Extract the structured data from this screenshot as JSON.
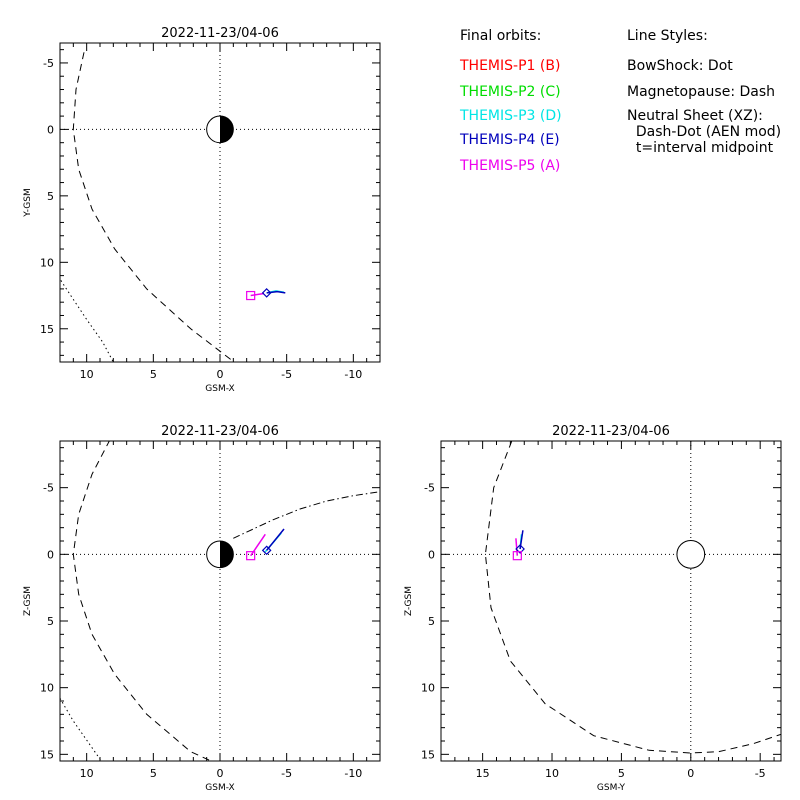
{
  "legend": {
    "orbits_title": "Final orbits:",
    "orbits": [
      {
        "label": "THEMIS-P1 (B)",
        "color": "#ff0000"
      },
      {
        "label": "THEMIS-P2 (C)",
        "color": "#00dd00"
      },
      {
        "label": "THEMIS-P3 (D)",
        "color": "#00e5e5"
      },
      {
        "label": "THEMIS-P4 (E)",
        "color": "#0000bb"
      },
      {
        "label": "THEMIS-P5 (A)",
        "color": "#ee00ee"
      }
    ],
    "styles_title": "Line Styles:",
    "styles": [
      "BowShock: Dot",
      "Magnetopause: Dash",
      "Neutral Sheet (XZ):",
      "  Dash-Dot (AEN mod)",
      "  t=interval midpoint"
    ]
  },
  "chart_data": [
    {
      "id": "xy",
      "type": "line",
      "title": "2022-11-23/04-06",
      "xlabel": "GSM-X",
      "ylabel": "Y-GSM",
      "xlim": [
        12,
        -12
      ],
      "ylim": [
        -6.5,
        17.5
      ],
      "xticks": [
        10,
        5,
        0,
        -5,
        -10
      ],
      "yticks": [
        -5,
        0,
        5,
        10,
        15
      ],
      "earth": {
        "x": 0,
        "y": 0,
        "r": 1
      },
      "series": [
        {
          "style": "dash",
          "points": [
            [
              10.2,
              -5.8
            ],
            [
              10.8,
              -3
            ],
            [
              11.0,
              0
            ],
            [
              10.6,
              3
            ],
            [
              9.6,
              6
            ],
            [
              7.9,
              9
            ],
            [
              5.5,
              12
            ],
            [
              2.2,
              15
            ],
            [
              -1.7,
              18
            ]
          ]
        },
        {
          "style": "dot",
          "points": [
            [
              12.3,
              10.8
            ],
            [
              11.2,
              12.5
            ],
            [
              10.0,
              14.3
            ],
            [
              8.8,
              16.0
            ],
            [
              8.0,
              17.5
            ]
          ]
        },
        {
          "style": "solid",
          "color": "#00e5e5",
          "points": [
            [
              -3.5,
              12.3
            ],
            [
              -4.2,
              12.15
            ],
            [
              -4.8,
              12.25
            ]
          ]
        },
        {
          "style": "solid",
          "color": "#0000bb",
          "points": [
            [
              -3.5,
              12.3
            ],
            [
              -4.3,
              12.2
            ],
            [
              -4.9,
              12.3
            ]
          ]
        },
        {
          "style": "solid",
          "color": "#ee00ee",
          "points": [
            [
              -2.3,
              12.5
            ],
            [
              -3.3,
              12.35
            ]
          ]
        }
      ],
      "markers": [
        {
          "shape": "diamond",
          "color": "#0000bb",
          "x": -3.5,
          "y": 12.3
        },
        {
          "shape": "square",
          "color": "#ee00ee",
          "x": -2.3,
          "y": 12.5
        }
      ]
    },
    {
      "id": "xz",
      "type": "line",
      "title": "2022-11-23/04-06",
      "xlabel": "GSM-X",
      "ylabel": "Z-GSM",
      "xlim": [
        12,
        -12
      ],
      "ylim": [
        -8.5,
        15.5
      ],
      "xticks": [
        10,
        5,
        0,
        -5,
        -10
      ],
      "yticks": [
        -5,
        0,
        5,
        10,
        15
      ],
      "earth": {
        "x": 0,
        "y": 0,
        "r": 1
      },
      "series": [
        {
          "style": "dash",
          "points": [
            [
              0,
              15.8
            ],
            [
              -0.5,
              16.5
            ]
          ]
        },
        {
          "style": "dash",
          "points": [
            [
              0,
              15.8
            ],
            [
              2.2,
              14.8
            ],
            [
              5.5,
              12
            ],
            [
              7.9,
              9
            ],
            [
              9.6,
              6
            ],
            [
              10.6,
              3
            ],
            [
              11.0,
              0
            ],
            [
              10.6,
              -3
            ],
            [
              9.6,
              -6
            ],
            [
              8.3,
              -8.5
            ]
          ]
        },
        {
          "style": "dot",
          "points": [
            [
              12,
              10.8
            ],
            [
              11.0,
              12.5
            ],
            [
              9.6,
              14.5
            ],
            [
              8.9,
              15.5
            ]
          ]
        },
        {
          "style": "dashdot",
          "points": [
            [
              -1,
              -1.2
            ],
            [
              -2.5,
              -1.9
            ],
            [
              -4,
              -2.6
            ],
            [
              -6,
              -3.4
            ],
            [
              -8,
              -4.0
            ],
            [
              -10,
              -4.4
            ],
            [
              -12,
              -4.7
            ]
          ]
        },
        {
          "style": "solid",
          "color": "#ee00ee",
          "points": [
            [
              -2.3,
              0.1
            ],
            [
              -3.4,
              -1.5
            ]
          ]
        },
        {
          "style": "solid",
          "color": "#00e5e5",
          "points": [
            [
              -3.4,
              -0.2
            ],
            [
              -4.6,
              -1.6
            ]
          ]
        },
        {
          "style": "solid",
          "color": "#0000bb",
          "points": [
            [
              -3.5,
              -0.3
            ],
            [
              -4.8,
              -1.9
            ]
          ]
        }
      ],
      "markers": [
        {
          "shape": "diamond",
          "color": "#0000bb",
          "x": -3.5,
          "y": -0.3
        },
        {
          "shape": "square",
          "color": "#ee00ee",
          "x": -2.3,
          "y": 0.1
        }
      ]
    },
    {
      "id": "yz",
      "type": "line",
      "title": "2022-11-23/04-06",
      "xlabel": "GSM-Y",
      "ylabel": "Z-GSM",
      "xlim": [
        18,
        -6.5
      ],
      "ylim": [
        -8.5,
        15.5
      ],
      "xticks": [
        15,
        10,
        5,
        0,
        -5
      ],
      "yticks": [
        -5,
        0,
        5,
        10,
        15
      ],
      "earth": {
        "x": 0,
        "y": 0,
        "r": 1
      },
      "series": [
        {
          "style": "dash",
          "points": [
            [
              12.9,
              -8.5
            ],
            [
              14.2,
              -5
            ],
            [
              14.8,
              0
            ],
            [
              14.4,
              4
            ],
            [
              13,
              8
            ],
            [
              10.5,
              11.2
            ],
            [
              7,
              13.6
            ],
            [
              3,
              14.7
            ],
            [
              0,
              14.9
            ],
            [
              -2,
              14.8
            ],
            [
              -4.5,
              14.2
            ],
            [
              -6.5,
              13.5
            ]
          ]
        },
        {
          "style": "solid",
          "color": "#ee00ee",
          "points": [
            [
              12.5,
              0.1
            ],
            [
              12.6,
              -1.2
            ]
          ]
        },
        {
          "style": "solid",
          "color": "#00e5e5",
          "points": [
            [
              12.3,
              -0.4
            ],
            [
              12.2,
              -1.5
            ]
          ]
        },
        {
          "style": "solid",
          "color": "#0000bb",
          "points": [
            [
              12.3,
              -0.4
            ],
            [
              12.1,
              -1.8
            ]
          ]
        }
      ],
      "markers": [
        {
          "shape": "diamond",
          "color": "#0000bb",
          "x": 12.3,
          "y": -0.4
        },
        {
          "shape": "square",
          "color": "#ee00ee",
          "x": 12.5,
          "y": 0.1
        }
      ]
    }
  ]
}
